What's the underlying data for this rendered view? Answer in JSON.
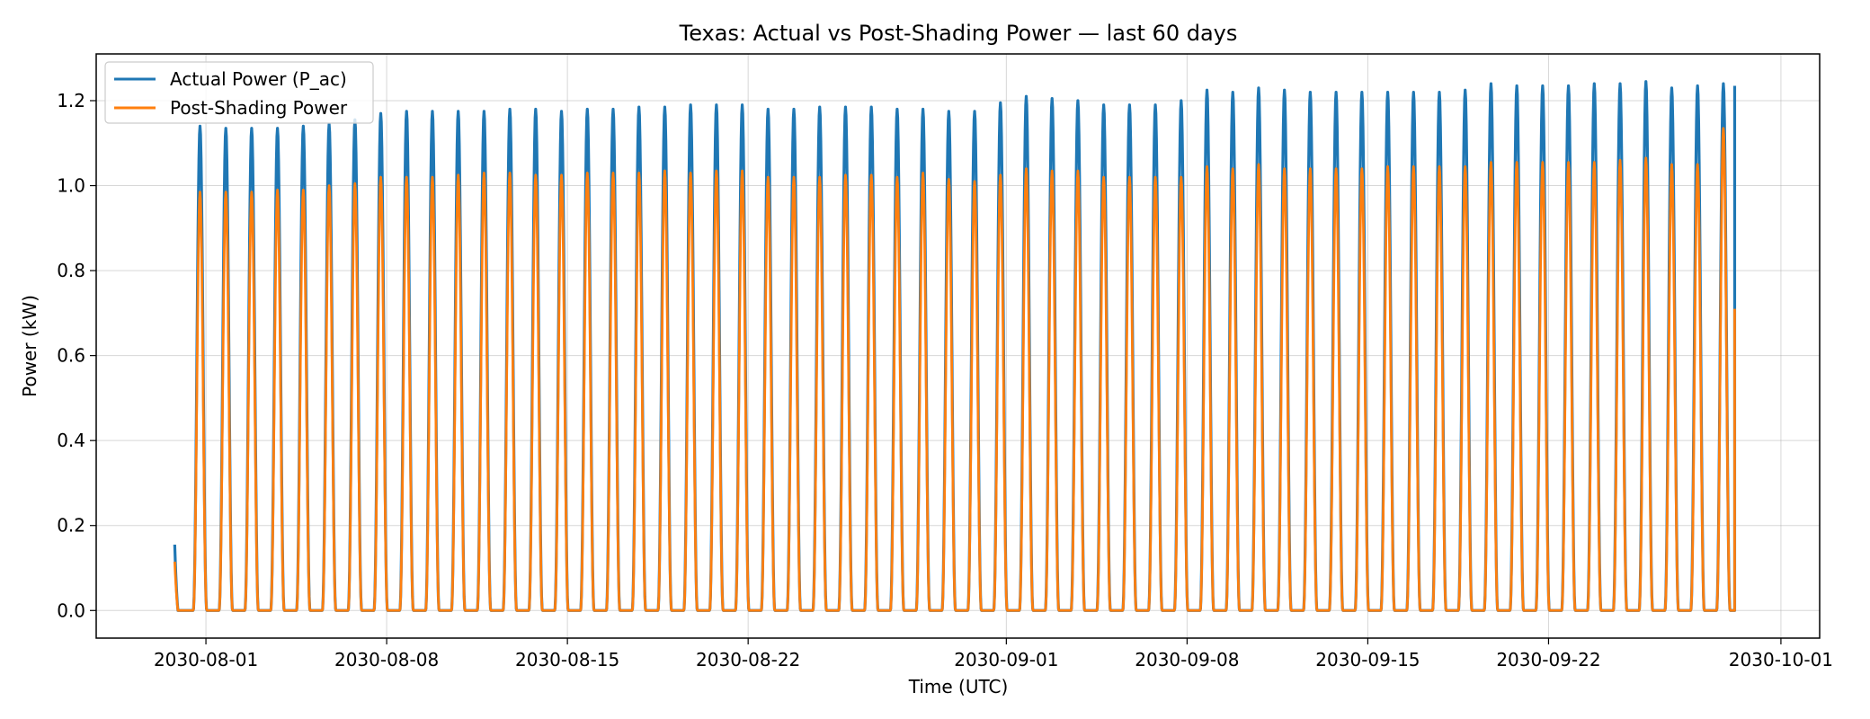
{
  "chart_data": {
    "type": "line",
    "title": "Texas: Actual vs Post-Shading Power — last 60 days",
    "xlabel": "Time (UTC)",
    "ylabel": "Power (kW)",
    "xlim": [
      "2030-07-27T18:00",
      "2030-10-02T12:00"
    ],
    "ylim": [
      -0.065,
      1.31
    ],
    "x_ticks": [
      "2030-08-01",
      "2030-08-08",
      "2030-08-15",
      "2030-08-22",
      "2030-09-01",
      "2030-09-08",
      "2030-09-15",
      "2030-09-22",
      "2030-10-01"
    ],
    "y_ticks": [
      "0.0",
      "0.2",
      "0.4",
      "0.6",
      "0.8",
      "1.0",
      "1.2"
    ],
    "grid": true,
    "legend_position": "top-left",
    "start": "2030-07-30T19:00",
    "end": "2030-09-29T05:00",
    "solar_noon_utc": "18:30",
    "peak_dates": [
      "2030-07-31",
      "2030-08-01",
      "2030-08-02",
      "2030-08-03",
      "2030-08-04",
      "2030-08-05",
      "2030-08-06",
      "2030-08-07",
      "2030-08-08",
      "2030-08-09",
      "2030-08-10",
      "2030-08-11",
      "2030-08-12",
      "2030-08-13",
      "2030-08-14",
      "2030-08-15",
      "2030-08-16",
      "2030-08-17",
      "2030-08-18",
      "2030-08-19",
      "2030-08-20",
      "2030-08-21",
      "2030-08-22",
      "2030-08-23",
      "2030-08-24",
      "2030-08-25",
      "2030-08-26",
      "2030-08-27",
      "2030-08-28",
      "2030-08-29",
      "2030-08-30",
      "2030-08-31",
      "2030-09-01",
      "2030-09-02",
      "2030-09-03",
      "2030-09-04",
      "2030-09-05",
      "2030-09-06",
      "2030-09-07",
      "2030-09-08",
      "2030-09-09",
      "2030-09-10",
      "2030-09-11",
      "2030-09-12",
      "2030-09-13",
      "2030-09-14",
      "2030-09-15",
      "2030-09-16",
      "2030-09-17",
      "2030-09-18",
      "2030-09-19",
      "2030-09-20",
      "2030-09-21",
      "2030-09-22",
      "2030-09-23",
      "2030-09-24",
      "2030-09-25",
      "2030-09-26",
      "2030-09-27",
      "2030-09-28"
    ],
    "series": [
      {
        "name": "Actual Power (P_ac)",
        "color": "#1f77b4",
        "start_value": 0.135,
        "daily_peaks": [
          1.14,
          1.135,
          1.135,
          1.135,
          1.14,
          1.145,
          1.155,
          1.17,
          1.175,
          1.175,
          1.175,
          1.175,
          1.18,
          1.18,
          1.175,
          1.18,
          1.18,
          1.185,
          1.185,
          1.19,
          1.19,
          1.19,
          1.18,
          1.18,
          1.185,
          1.185,
          1.185,
          1.18,
          1.18,
          1.175,
          1.175,
          1.195,
          1.21,
          1.205,
          1.2,
          1.19,
          1.19,
          1.19,
          1.2,
          1.225,
          1.22,
          1.23,
          1.225,
          1.22,
          1.22,
          1.22,
          1.22,
          1.22,
          1.22,
          1.225,
          1.24,
          1.235,
          1.235,
          1.235,
          1.24,
          1.24,
          1.245,
          1.23,
          1.235,
          1.24
        ],
        "end_value": 1.235
      },
      {
        "name": "Post-Shading Power",
        "color": "#ff7f0e",
        "start_value": 0.095,
        "daily_peaks": [
          0.985,
          0.985,
          0.985,
          0.99,
          0.99,
          1.0,
          1.005,
          1.02,
          1.02,
          1.02,
          1.025,
          1.03,
          1.03,
          1.025,
          1.025,
          1.03,
          1.03,
          1.03,
          1.035,
          1.03,
          1.035,
          1.035,
          1.02,
          1.02,
          1.02,
          1.025,
          1.025,
          1.02,
          1.03,
          1.015,
          1.01,
          1.025,
          1.04,
          1.035,
          1.035,
          1.02,
          1.02,
          1.02,
          1.02,
          1.045,
          1.04,
          1.05,
          1.04,
          1.04,
          1.04,
          1.04,
          1.045,
          1.045,
          1.045,
          1.045,
          1.055,
          1.055,
          1.055,
          1.055,
          1.055,
          1.06,
          1.065,
          1.05,
          1.05,
          1.135
        ],
        "end_value": 0.71
      }
    ]
  }
}
